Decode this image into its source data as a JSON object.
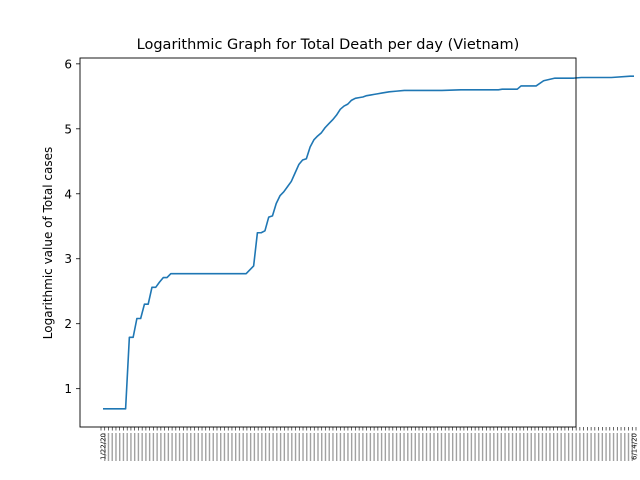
{
  "chart_data": {
    "type": "line",
    "title": "Logarithmic Graph for Total Death per day (Vietnam)",
    "xlabel": "",
    "ylabel": "Logarithmic value of Total cases",
    "ylim": [
      0.41,
      6.09
    ],
    "yticks": [
      1,
      2,
      3,
      4,
      5,
      6
    ],
    "grid": false,
    "line_color": "#1f77b4",
    "x_start_label": "1/22/20",
    "x_end_label": "6/14/20",
    "x": [
      0,
      6,
      7,
      8,
      9,
      10,
      11,
      12,
      13,
      14,
      15,
      16,
      17,
      18,
      19,
      20,
      25,
      30,
      35,
      38,
      40,
      41,
      42,
      43,
      44,
      45,
      46,
      47,
      48,
      49,
      50,
      51,
      52,
      53,
      54,
      55,
      56,
      57,
      58,
      59,
      60,
      61,
      62,
      63,
      64,
      65,
      66,
      67,
      68,
      69,
      70,
      71,
      72,
      73,
      74,
      75,
      76,
      78,
      80,
      82,
      85,
      90,
      95,
      100,
      105,
      106,
      110,
      111,
      115,
      117,
      120,
      125,
      127,
      130,
      135,
      140,
      141
    ],
    "y": [
      0.69,
      0.69,
      1.79,
      1.79,
      2.08,
      2.08,
      2.3,
      2.3,
      2.56,
      2.56,
      2.64,
      2.71,
      2.71,
      2.77,
      2.77,
      2.77,
      2.77,
      2.77,
      2.77,
      2.77,
      2.89,
      3.4,
      3.4,
      3.43,
      3.64,
      3.66,
      3.85,
      3.97,
      4.03,
      4.11,
      4.19,
      4.32,
      4.45,
      4.52,
      4.54,
      4.72,
      4.83,
      4.89,
      4.94,
      5.02,
      5.08,
      5.14,
      5.21,
      5.3,
      5.35,
      5.38,
      5.44,
      5.47,
      5.48,
      5.49,
      5.51,
      5.52,
      5.53,
      5.54,
      5.55,
      5.56,
      5.57,
      5.58,
      5.59,
      5.59,
      5.59,
      5.59,
      5.6,
      5.6,
      5.6,
      5.61,
      5.61,
      5.66,
      5.66,
      5.74,
      5.78,
      5.78,
      5.79,
      5.79,
      5.79,
      5.81,
      5.81
    ]
  }
}
